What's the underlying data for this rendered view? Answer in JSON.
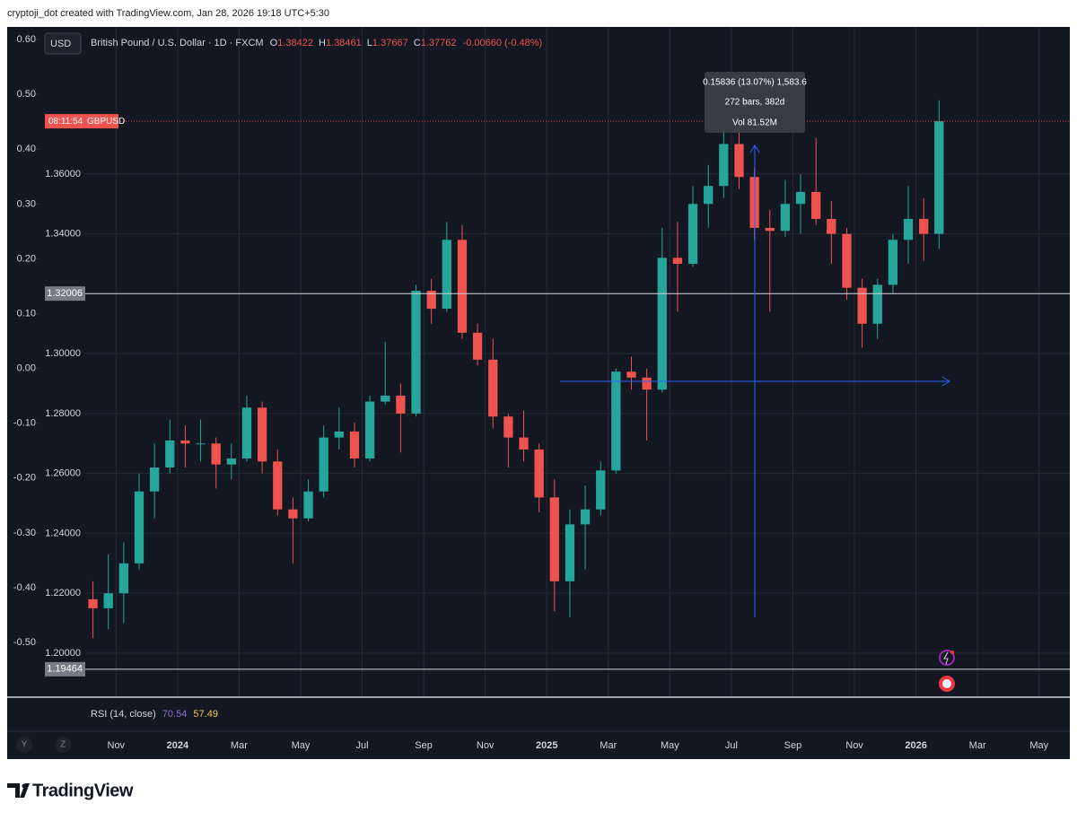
{
  "header": {
    "caption": "cryptoji_dot created with TradingView.com, Jan 28, 2026 19:18 UTC+5:30"
  },
  "chart_data": {
    "type": "candlestick",
    "currency": "USD",
    "title": "British Pound / U.S. Dollar · 1D · FXCM",
    "ohlc": [
      {
        "label": "O",
        "value": 1.38422
      },
      {
        "label": "H",
        "value": 1.38461
      },
      {
        "label": "L",
        "value": 1.37667
      },
      {
        "label": "C",
        "value": 1.37762
      }
    ],
    "change": "-0.00660 (-0.48%)",
    "up_color": "#26a69a",
    "down_color": "#ef5350",
    "categories": [
      null,
      null,
      "Nov",
      null,
      null,
      null,
      "2024",
      null,
      null,
      null,
      "Mar",
      null,
      null,
      null,
      "May",
      null,
      null,
      null,
      "Jul",
      null,
      null,
      null,
      "Sep",
      null,
      null,
      null,
      "Nov",
      null,
      null,
      null,
      "2025",
      null,
      null,
      null,
      "Mar",
      null,
      null,
      null,
      "May",
      null,
      null,
      null,
      "Jul",
      null,
      null,
      null,
      "Sep",
      null,
      null,
      null,
      "Nov",
      null,
      null,
      null,
      "2026",
      null,
      null,
      null,
      "Mar",
      null,
      null,
      null,
      "May",
      null
    ],
    "open": [
      1.218,
      1.215,
      1.22,
      1.23,
      1.254,
      1.262,
      1.271,
      1.27,
      1.27,
      1.263,
      1.265,
      1.282,
      1.264,
      1.248,
      1.245,
      1.254,
      1.272,
      1.274,
      1.265,
      1.284,
      1.286,
      1.28,
      1.321,
      1.315,
      1.338,
      1.307,
      1.298,
      1.279,
      1.272,
      1.268,
      1.252,
      1.224,
      1.243,
      1.248,
      1.261,
      1.294,
      1.292,
      1.288,
      1.332,
      1.33,
      1.35,
      1.356,
      1.37,
      1.359,
      1.342,
      1.341,
      1.35,
      1.354,
      1.345,
      1.34,
      1.322,
      1.31,
      1.323,
      1.338,
      1.345,
      1.34,
      null,
      null,
      null,
      null,
      null,
      null,
      null,
      null
    ],
    "high": [
      1.224,
      1.233,
      1.237,
      1.26,
      1.27,
      1.278,
      1.276,
      1.278,
      1.272,
      1.27,
      1.286,
      1.284,
      1.268,
      1.252,
      1.258,
      1.276,
      1.282,
      1.277,
      1.286,
      1.304,
      1.29,
      1.323,
      1.325,
      1.344,
      1.343,
      1.31,
      1.305,
      1.28,
      1.281,
      1.27,
      1.258,
      1.248,
      1.256,
      1.264,
      1.295,
      1.299,
      1.295,
      1.342,
      1.344,
      1.356,
      1.363,
      1.376,
      1.379,
      1.362,
      1.348,
      1.358,
      1.36,
      1.372,
      1.351,
      1.342,
      1.325,
      1.325,
      1.34,
      1.356,
      1.352,
      1.3846,
      null,
      null,
      null,
      null,
      null,
      null,
      null,
      null
    ],
    "low": [
      1.205,
      1.208,
      1.21,
      1.228,
      1.245,
      1.26,
      1.262,
      1.264,
      1.255,
      1.258,
      1.264,
      1.26,
      1.246,
      1.23,
      1.244,
      1.252,
      1.268,
      1.262,
      1.264,
      1.283,
      1.267,
      1.279,
      1.31,
      1.314,
      1.305,
      1.296,
      1.275,
      1.262,
      1.264,
      1.247,
      1.214,
      1.212,
      1.228,
      1.246,
      1.26,
      1.288,
      1.271,
      1.287,
      1.314,
      1.329,
      1.342,
      1.352,
      1.355,
      1.338,
      1.314,
      1.339,
      1.34,
      1.343,
      1.33,
      1.318,
      1.302,
      1.305,
      1.32,
      1.33,
      1.331,
      1.335,
      null,
      null,
      null,
      null,
      null,
      null,
      null,
      null
    ],
    "close": [
      1.215,
      1.22,
      1.23,
      1.254,
      1.262,
      1.271,
      1.27,
      1.27,
      1.263,
      1.265,
      1.282,
      1.264,
      1.248,
      1.245,
      1.254,
      1.272,
      1.274,
      1.265,
      1.284,
      1.286,
      1.28,
      1.321,
      1.315,
      1.338,
      1.307,
      1.298,
      1.279,
      1.272,
      1.268,
      1.252,
      1.224,
      1.243,
      1.248,
      1.261,
      1.294,
      1.292,
      1.288,
      1.332,
      1.33,
      1.35,
      1.356,
      1.37,
      1.359,
      1.342,
      1.341,
      1.35,
      1.354,
      1.345,
      1.34,
      1.322,
      1.31,
      1.323,
      1.338,
      1.345,
      1.34,
      1.3776,
      null,
      null,
      null,
      null,
      null,
      null,
      null,
      null
    ],
    "ylim": [
      1.1856,
      1.4091
    ],
    "yticks": [
      {
        "value": 1.2,
        "label": "1.20000"
      },
      {
        "value": 1.22,
        "label": "1.22000"
      },
      {
        "value": 1.24,
        "label": "1.24000"
      },
      {
        "value": 1.26,
        "label": "1.26000"
      },
      {
        "value": 1.28,
        "label": "1.28000"
      },
      {
        "value": 1.3,
        "label": "1.30000"
      },
      {
        "value": 1.32,
        "label": "1.32000"
      },
      {
        "value": 1.34,
        "label": "1.34000"
      },
      {
        "value": 1.36,
        "label": "1.36000"
      }
    ],
    "y2lim": [
      -0.598,
      0.623
    ],
    "y2ticks": [
      {
        "value": 0.6,
        "label": "0.60"
      },
      {
        "value": 0.5,
        "label": "0.50"
      },
      {
        "value": 0.4,
        "label": "0.40"
      },
      {
        "value": 0.3,
        "label": "0.30"
      },
      {
        "value": 0.2,
        "label": "0.20"
      },
      {
        "value": 0.1,
        "label": "0.10"
      },
      {
        "value": 0,
        "label": "0.00"
      },
      {
        "value": -0.1,
        "label": "-0.10"
      },
      {
        "value": -0.2,
        "label": "-0.20"
      },
      {
        "value": -0.3,
        "label": "-0.30"
      },
      {
        "value": -0.4,
        "label": "-0.40"
      },
      {
        "value": -0.5,
        "label": "-0.50"
      }
    ],
    "grid": true,
    "horizontal_lines": [
      1.32006,
      1.19464
    ],
    "last_price": {
      "time": "08:11:54",
      "symbol": "GBPUSD"
    },
    "measure": [
      "0.15836 (13.07%) 1,583.6",
      "272 bars, 382d",
      "Vol 81.52M"
    ],
    "rsi": {
      "label": "RSI (14, close)",
      "values": [
        70.54,
        57.49
      ],
      "colors": [
        "#8e6fd8",
        "#f2c94c"
      ]
    }
  },
  "buttons": [
    "Y",
    "Z"
  ],
  "footer": {
    "brand": "TradingView"
  }
}
